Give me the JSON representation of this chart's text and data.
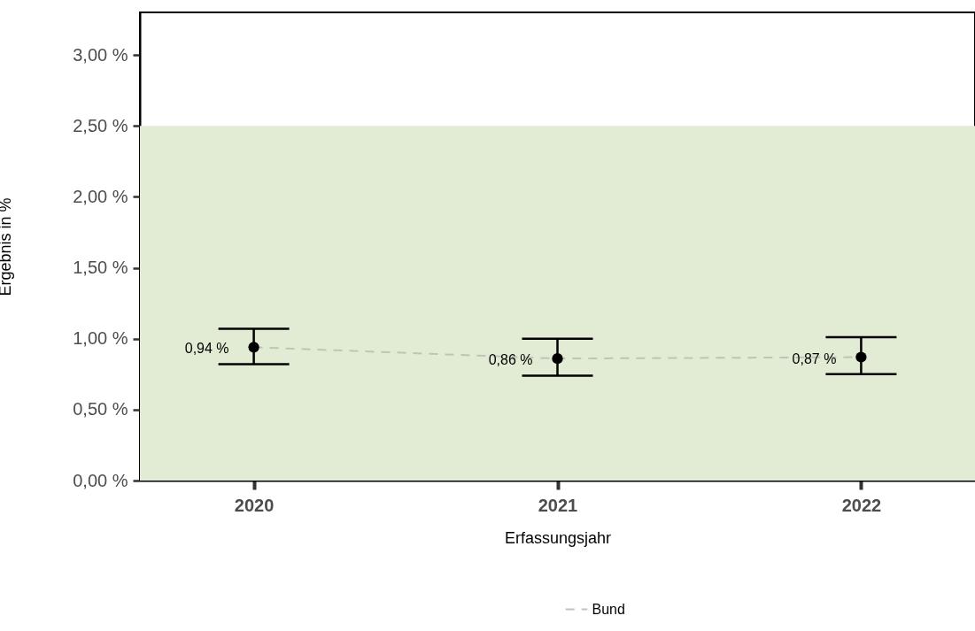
{
  "chart_data": {
    "type": "line",
    "xlabel": "Erfassungsjahr",
    "ylabel": "Ergebnis in %",
    "categories": [
      "2020",
      "2021",
      "2022"
    ],
    "series": [
      {
        "name": "Bund",
        "color": "#bfc4b8",
        "line_style": "dashed",
        "values": [
          0.94,
          0.86,
          0.87
        ]
      },
      {
        "type": "scatter",
        "color": "#000000",
        "marker": "circle",
        "values": [
          0.94,
          0.86,
          0.87
        ],
        "errors": [
          [
            0.82,
            1.07
          ],
          [
            0.74,
            1.0
          ],
          [
            0.75,
            1.01
          ]
        ],
        "value_labels": [
          "0,94 %",
          "0,86 %",
          "0,87 %"
        ]
      }
    ],
    "ylim": [
      0,
      3.3
    ],
    "yticks": [
      {
        "value": 0,
        "label": "0,00 %"
      },
      {
        "value": 0.5,
        "label": "0,50 %"
      },
      {
        "value": 1,
        "label": "1,00 %"
      },
      {
        "value": 1.5,
        "label": "1,50 %"
      },
      {
        "value": 2,
        "label": "2,00 %"
      },
      {
        "value": 2.5,
        "label": "2,50 %"
      },
      {
        "value": 3,
        "label": "3,00 %"
      }
    ],
    "bands": [
      {
        "axis": "y",
        "from": 0,
        "to": 2.5,
        "color": "#e2ebd3"
      }
    ],
    "grid": false,
    "legend": "bottom"
  }
}
